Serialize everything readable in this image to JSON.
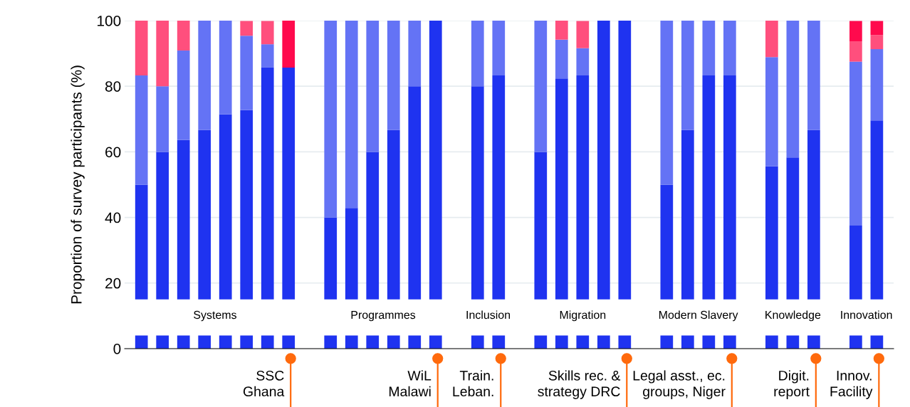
{
  "chart_data": {
    "type": "bar",
    "stacked": true,
    "ylabel": "Proportion of survey participants (%)",
    "categories": [
      null,
      null,
      null,
      null,
      null,
      null,
      null,
      null,
      null,
      null,
      null,
      null,
      null,
      null,
      null,
      null,
      null,
      null,
      null,
      null,
      null,
      null,
      null,
      null,
      null,
      null,
      null,
      null,
      null,
      null,
      null,
      null,
      null,
      null,
      null,
      null
    ],
    "series": [
      {
        "color": "#1f33f0",
        "values": [
          50,
          60,
          63.6,
          66.7,
          71.4,
          72.7,
          85.7,
          85.7,
          null,
          40,
          42.9,
          60,
          66.7,
          80,
          100,
          null,
          80,
          83.3,
          null,
          60,
          82.4,
          83.3,
          100,
          100,
          null,
          50,
          66.7,
          83.3,
          83.3,
          null,
          55.6,
          58.3,
          66.7,
          null,
          37.5,
          69.6
        ]
      },
      {
        "color": "#6473f5",
        "values": [
          33.3,
          20,
          27.3,
          33.3,
          28.6,
          22.7,
          7.1,
          0,
          null,
          60,
          57.1,
          40,
          33.3,
          20,
          0,
          null,
          20,
          16.7,
          null,
          40,
          11.8,
          8.3,
          0,
          0,
          null,
          50,
          33.3,
          16.7,
          16.7,
          null,
          33.3,
          41.7,
          33.3,
          null,
          50,
          21.7
        ]
      },
      {
        "color": "#ff4f7d",
        "values": [
          16.7,
          20,
          9.1,
          0,
          0,
          4.5,
          7.1,
          0,
          null,
          0,
          0,
          0,
          0,
          0,
          0,
          null,
          0,
          0,
          null,
          0,
          5.9,
          8.3,
          0,
          0,
          null,
          0,
          0,
          0,
          0,
          null,
          11.1,
          0,
          0,
          null,
          6.2,
          4.3
        ]
      },
      {
        "color": "#ff0a4d",
        "values": [
          0,
          0,
          0,
          0,
          0,
          0,
          0,
          14.3,
          null,
          0,
          0,
          0,
          0,
          0,
          0,
          null,
          0,
          0,
          null,
          0,
          0,
          0,
          0,
          0,
          null,
          0,
          0,
          0,
          0,
          null,
          0,
          0,
          0,
          null,
          6.2,
          4.3
        ]
      }
    ],
    "ylim": [
      0,
      100
    ],
    "yticks": [
      0,
      20,
      40,
      60,
      80,
      100
    ],
    "grid": "y",
    "bands": [
      {
        "axis": "y",
        "from": 4,
        "to": 15,
        "label": null,
        "color": "#ffffff"
      }
    ],
    "annotations": [
      "Systems",
      "Programmes",
      "Inclusion",
      "Migration",
      "Modern Slavery",
      "Knowledge",
      "Innovation",
      "SSC\nGhana",
      "WiL\nMalawi",
      "Train.\nLeban.",
      "Skills rec. &\nstrategy DRC",
      "Legal asst., ec.\ngroups, Niger",
      "Digit.\nreport",
      "Innov.\nFacility"
    ]
  }
}
